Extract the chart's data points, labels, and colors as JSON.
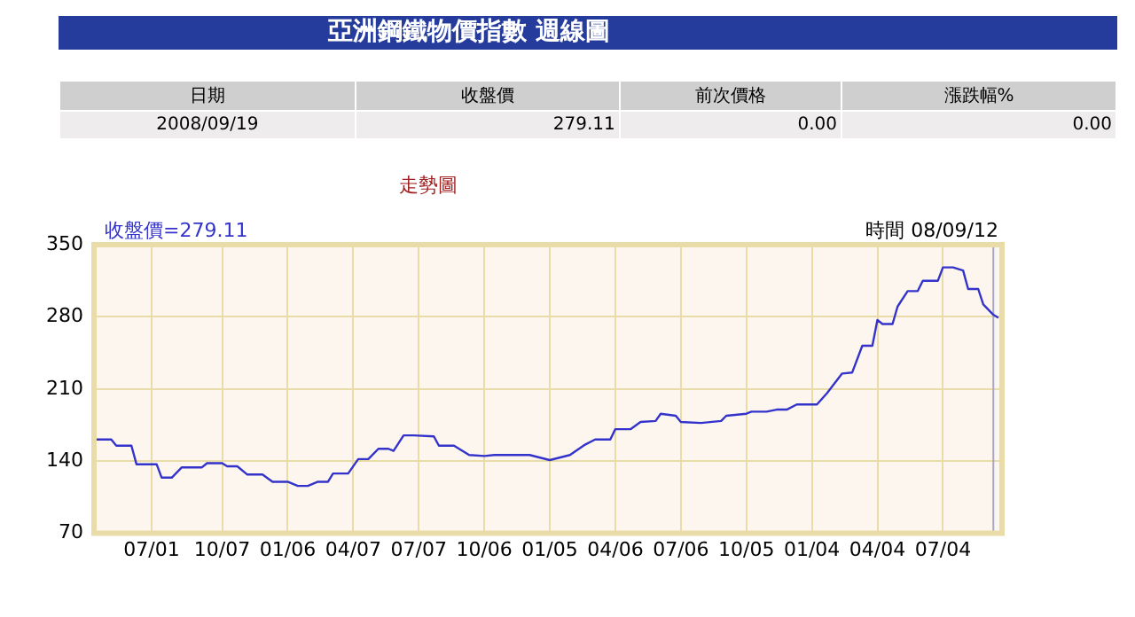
{
  "chart_data": {
    "type": "line",
    "title": "亞洲鋼鐵物價指數 週線圖",
    "annotations": [
      "日期",
      "收盤價",
      "前次價格",
      "漲跌幅%",
      "2008/09/19",
      "279.11",
      "0.00",
      "0.00",
      "走勢圖"
    ],
    "series": [
      {
        "name": "收盤價=279.11",
        "color": "#3333cc",
        "x": [
          "2005-04-15",
          "2005-05-06",
          "2005-05-13",
          "2005-06-03",
          "2005-06-10",
          "2005-07-08",
          "2005-07-15",
          "2005-07-29",
          "2005-08-12",
          "2005-09-09",
          "2005-09-16",
          "2005-10-07",
          "2005-10-14",
          "2005-10-28",
          "2005-11-11",
          "2005-12-02",
          "2005-12-16",
          "2006-01-06",
          "2006-01-20",
          "2006-02-03",
          "2006-02-17",
          "2006-03-03",
          "2006-03-10",
          "2006-03-31",
          "2006-04-14",
          "2006-04-28",
          "2006-05-12",
          "2006-05-26",
          "2006-06-02",
          "2006-06-16",
          "2006-06-30",
          "2006-07-28",
          "2006-08-04",
          "2006-08-25",
          "2006-09-15",
          "2006-10-06",
          "2006-10-20",
          "2006-11-24",
          "2006-12-08",
          "2007-01-05",
          "2007-02-02",
          "2007-02-23",
          "2007-03-09",
          "2007-03-30",
          "2007-04-06",
          "2007-04-27",
          "2007-05-11",
          "2007-06-01",
          "2007-06-08",
          "2007-06-29",
          "2007-07-06",
          "2007-08-03",
          "2007-08-31",
          "2007-09-07",
          "2007-10-05",
          "2007-10-12",
          "2007-11-02",
          "2007-11-16",
          "2007-11-30",
          "2007-12-14",
          "2008-01-11",
          "2008-01-25",
          "2008-02-15",
          "2008-02-29",
          "2008-03-14",
          "2008-03-28",
          "2008-04-04",
          "2008-04-11",
          "2008-04-25",
          "2008-05-02",
          "2008-05-16",
          "2008-05-30",
          "2008-06-06",
          "2008-06-27",
          "2008-07-04",
          "2008-07-18",
          "2008-08-01",
          "2008-08-08",
          "2008-08-22",
          "2008-08-29",
          "2008-09-12",
          "2008-09-19"
        ],
        "values": [
          161,
          161,
          155,
          155,
          137,
          137,
          124,
          124,
          134,
          134,
          138,
          138,
          135,
          135,
          127,
          127,
          120,
          120,
          116,
          116,
          120,
          120,
          128,
          128,
          142,
          142,
          152,
          152,
          150,
          165,
          165,
          164,
          155,
          155,
          146,
          145,
          146,
          146,
          146,
          141,
          146,
          156,
          161,
          161,
          171,
          171,
          178,
          179,
          186,
          184,
          178,
          177,
          179,
          184,
          186,
          188,
          188,
          190,
          190,
          195,
          195,
          206,
          225,
          226,
          252,
          252,
          277,
          273,
          273,
          290,
          305,
          305,
          315,
          315,
          328,
          328,
          325,
          307,
          307,
          292,
          282,
          279.11
        ]
      }
    ],
    "xlim": [
      "2005-04-12",
      "2008-09-24"
    ],
    "xticks": [
      {
        "value": "2005-07-01",
        "label": "07/01"
      },
      {
        "value": "2005-10-07",
        "label": "10/07"
      },
      {
        "value": "2006-01-06",
        "label": "01/06"
      },
      {
        "value": "2006-04-07",
        "label": "04/07"
      },
      {
        "value": "2006-07-07",
        "label": "07/07"
      },
      {
        "value": "2006-10-06",
        "label": "10/06"
      },
      {
        "value": "2007-01-05",
        "label": "01/05"
      },
      {
        "value": "2007-04-06",
        "label": "04/06"
      },
      {
        "value": "2007-07-06",
        "label": "07/06"
      },
      {
        "value": "2007-10-05",
        "label": "10/05"
      },
      {
        "value": "2008-01-04",
        "label": "01/04"
      },
      {
        "value": "2008-04-04",
        "label": "04/04"
      },
      {
        "value": "2008-07-04",
        "label": "07/04"
      }
    ],
    "ylim": [
      70,
      350
    ],
    "yticks": [
      70,
      140,
      210,
      280,
      350
    ],
    "ref_lines": [
      {
        "axis": "x",
        "value": "2008-09-12",
        "label": "時間 08/09/12",
        "color": "#a8a8c0"
      }
    ],
    "grid": true,
    "legend": false,
    "marker": "none",
    "line_style": "solid"
  }
}
